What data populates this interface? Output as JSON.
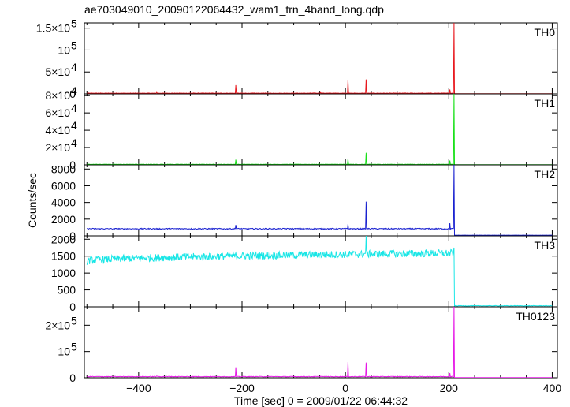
{
  "chart_data": {
    "type": "line",
    "title": "ae703049010_20090122064432_wam1_trn_4band_long.qdp",
    "xlabel": "Time [sec] 0 = 2009/01/22 06:44:32",
    "ylabel": "Counts/sec",
    "xlim": [
      -505,
      410
    ],
    "x_ticks": [
      -400,
      -200,
      0,
      200,
      400
    ],
    "x_tick_labels": [
      "−400",
      "−200",
      "0",
      "200",
      "400"
    ],
    "panels": [
      {
        "name": "TH0",
        "color": "#e8191f",
        "ylim": [
          0,
          162000
        ],
        "y_ticks": [
          0,
          50000,
          100000,
          150000
        ],
        "y_tick_labels": [
          {
            "m": "0",
            "e": ""
          },
          {
            "m": "5×10",
            "e": "4"
          },
          {
            "m": "10",
            "e": "5"
          },
          {
            "m": "1.5×10",
            "e": "5"
          }
        ],
        "baseline": 1500,
        "tail": 400,
        "noise": 500,
        "spikes": [
          [
            -365,
            3500
          ],
          [
            -212,
            20000
          ],
          [
            -48,
            3000
          ],
          [
            5,
            32000
          ],
          [
            40,
            33000
          ],
          [
            202,
            10000
          ],
          [
            210,
            162000
          ]
        ]
      },
      {
        "name": "TH1",
        "color": "#19e019",
        "ylim": [
          0,
          82000
        ],
        "y_ticks": [
          0,
          20000,
          40000,
          60000,
          80000
        ],
        "y_tick_labels": [
          {
            "m": "0",
            "e": ""
          },
          {
            "m": "2×10",
            "e": "4"
          },
          {
            "m": "4×10",
            "e": "4"
          },
          {
            "m": "6×10",
            "e": "4"
          },
          {
            "m": "8×10",
            "e": "4"
          }
        ],
        "baseline": 600,
        "tail": 200,
        "noise": 250,
        "spikes": [
          [
            -212,
            6000
          ],
          [
            5,
            7000
          ],
          [
            40,
            14000
          ],
          [
            202,
            5000
          ],
          [
            210,
            82000
          ]
        ]
      },
      {
        "name": "TH2",
        "color": "#1a22d0",
        "ylim": [
          0,
          8500
        ],
        "y_ticks": [
          0,
          2000,
          4000,
          6000,
          8000
        ],
        "y_tick_labels": [
          {
            "m": "0",
            "e": ""
          },
          {
            "m": "2000",
            "e": ""
          },
          {
            "m": "4000",
            "e": ""
          },
          {
            "m": "6000",
            "e": ""
          },
          {
            "m": "8000",
            "e": ""
          }
        ],
        "baseline": 850,
        "tail": 80,
        "noise": 60,
        "spikes": [
          [
            -212,
            1300
          ],
          [
            5,
            1400
          ],
          [
            40,
            4100
          ],
          [
            202,
            1500
          ],
          [
            210,
            8500
          ]
        ]
      },
      {
        "name": "TH3",
        "color": "#19e6e6",
        "ylim": [
          0,
          2100
        ],
        "y_ticks": [
          0,
          500,
          1000,
          1500,
          2000
        ],
        "y_tick_labels": [
          {
            "m": "0",
            "e": ""
          },
          {
            "m": "500",
            "e": ""
          },
          {
            "m": "1000",
            "e": ""
          },
          {
            "m": "1500",
            "e": ""
          },
          {
            "m": "2000",
            "e": ""
          }
        ],
        "baseline_start": 1350,
        "baseline_end": 1590,
        "tail": 30,
        "noise": 110,
        "spikes": [
          [
            40,
            2100
          ],
          [
            210,
            1750
          ]
        ]
      },
      {
        "name": "TH0123",
        "color": "#e619e6",
        "ylim": [
          0,
          270000
        ],
        "y_ticks": [
          0,
          100000,
          200000
        ],
        "y_tick_labels": [
          {
            "m": "0",
            "e": ""
          },
          {
            "m": "10",
            "e": "5"
          },
          {
            "m": "2×10",
            "e": "5"
          }
        ],
        "baseline": 4500,
        "tail": 800,
        "noise": 1200,
        "spikes": [
          [
            -365,
            7000
          ],
          [
            -212,
            40000
          ],
          [
            -48,
            6000
          ],
          [
            5,
            60000
          ],
          [
            40,
            58000
          ],
          [
            202,
            18000
          ],
          [
            210,
            270000
          ]
        ]
      }
    ]
  }
}
